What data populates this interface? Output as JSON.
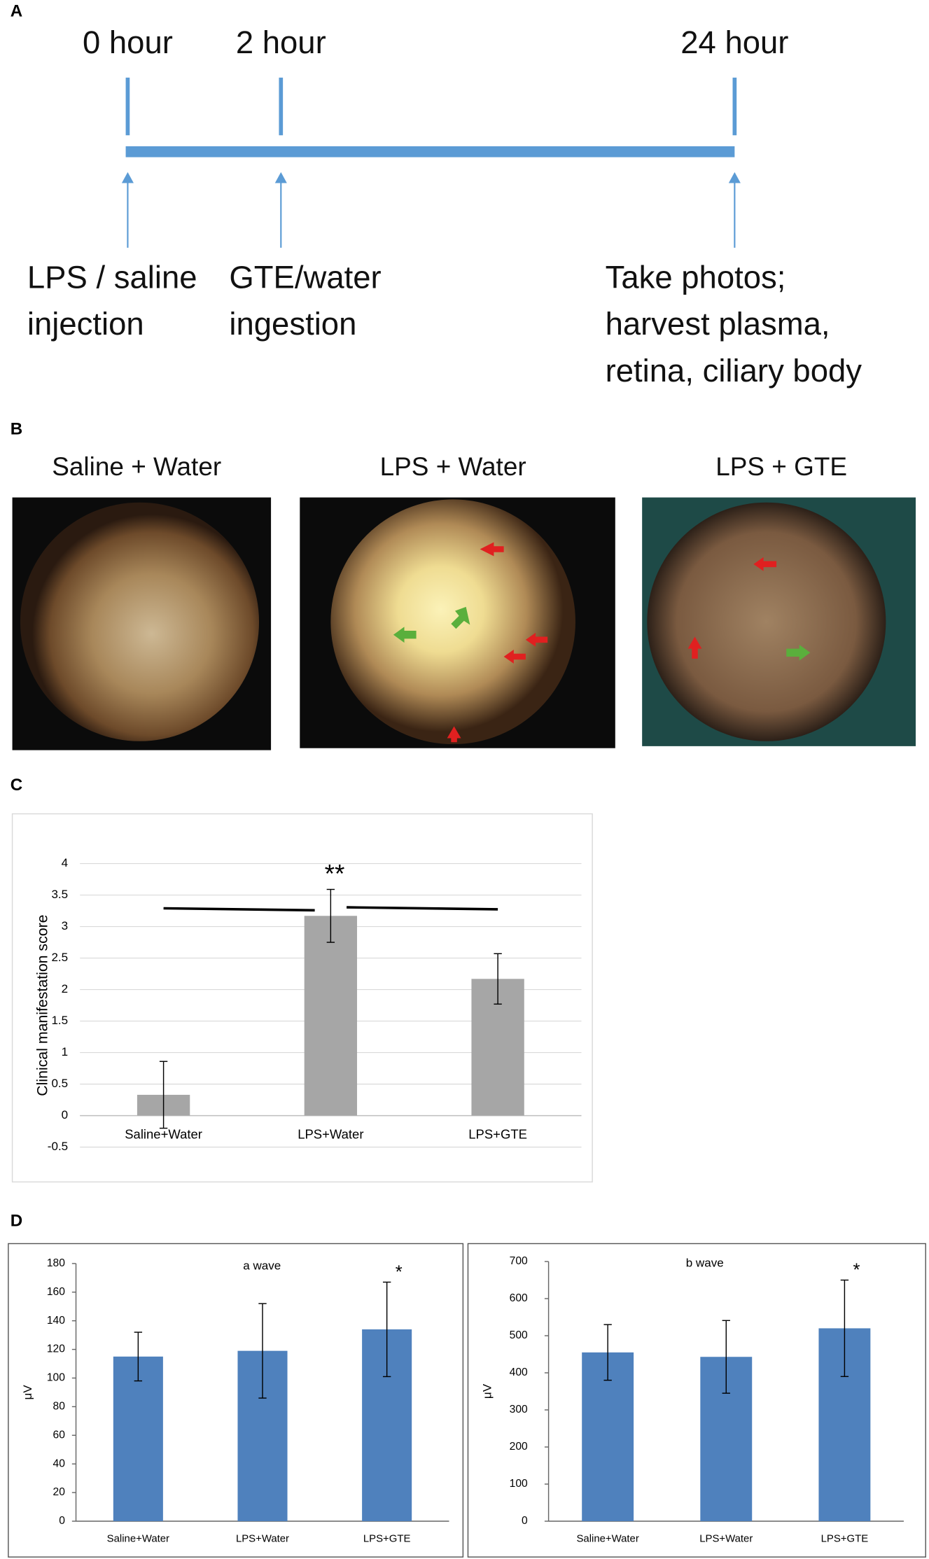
{
  "panel_labels": [
    "A",
    "B",
    "C",
    "D"
  ],
  "timeline": {
    "times": [
      "0 hour",
      "2 hour",
      "24 hour"
    ],
    "events": [
      [
        "LPS / saline",
        "injection"
      ],
      [
        "GTE/water",
        "ingestion"
      ],
      [
        "Take photos;",
        "harvest plasma,",
        "retina, ciliary body"
      ]
    ]
  },
  "photos": {
    "titles": [
      "Saline + Water",
      "LPS + Water",
      "LPS + GTE"
    ]
  },
  "chart_data": [
    {
      "type": "bar",
      "ylabel": "Clinical manifestation score",
      "categories": [
        "Saline+Water",
        "LPS+Water",
        "LPS+GTE"
      ],
      "values": [
        0.33,
        3.17,
        2.17
      ],
      "errors": [
        0.53,
        0.42,
        0.4
      ],
      "color": "#a6a6a6",
      "ylim": [
        -0.5,
        4
      ],
      "yticks": [
        -0.5,
        0,
        0.5,
        1,
        1.5,
        2,
        2.5,
        3,
        3.5,
        4
      ],
      "grid": true,
      "annotation": "**"
    },
    {
      "type": "bar",
      "title": "a wave",
      "ylabel": "μV",
      "categories": [
        "Saline+Water",
        "LPS+Water",
        "LPS+GTE"
      ],
      "values": [
        115,
        119,
        134
      ],
      "errors": [
        17,
        33,
        33
      ],
      "color": "#4f81bd",
      "ylim": [
        0,
        180
      ],
      "yticks": [
        0,
        20,
        40,
        60,
        80,
        100,
        120,
        140,
        160,
        180
      ],
      "grid": false,
      "annotation": "*"
    },
    {
      "type": "bar",
      "title": "b wave",
      "ylabel": "μV",
      "categories": [
        "Saline+Water",
        "LPS+Water",
        "LPS+GTE"
      ],
      "values": [
        455,
        443,
        520
      ],
      "errors": [
        75,
        98,
        130
      ],
      "color": "#4f81bd",
      "ylim": [
        0,
        700
      ],
      "yticks": [
        0,
        100,
        200,
        300,
        400,
        500,
        600,
        700
      ],
      "grid": false,
      "annotation": "*"
    }
  ]
}
